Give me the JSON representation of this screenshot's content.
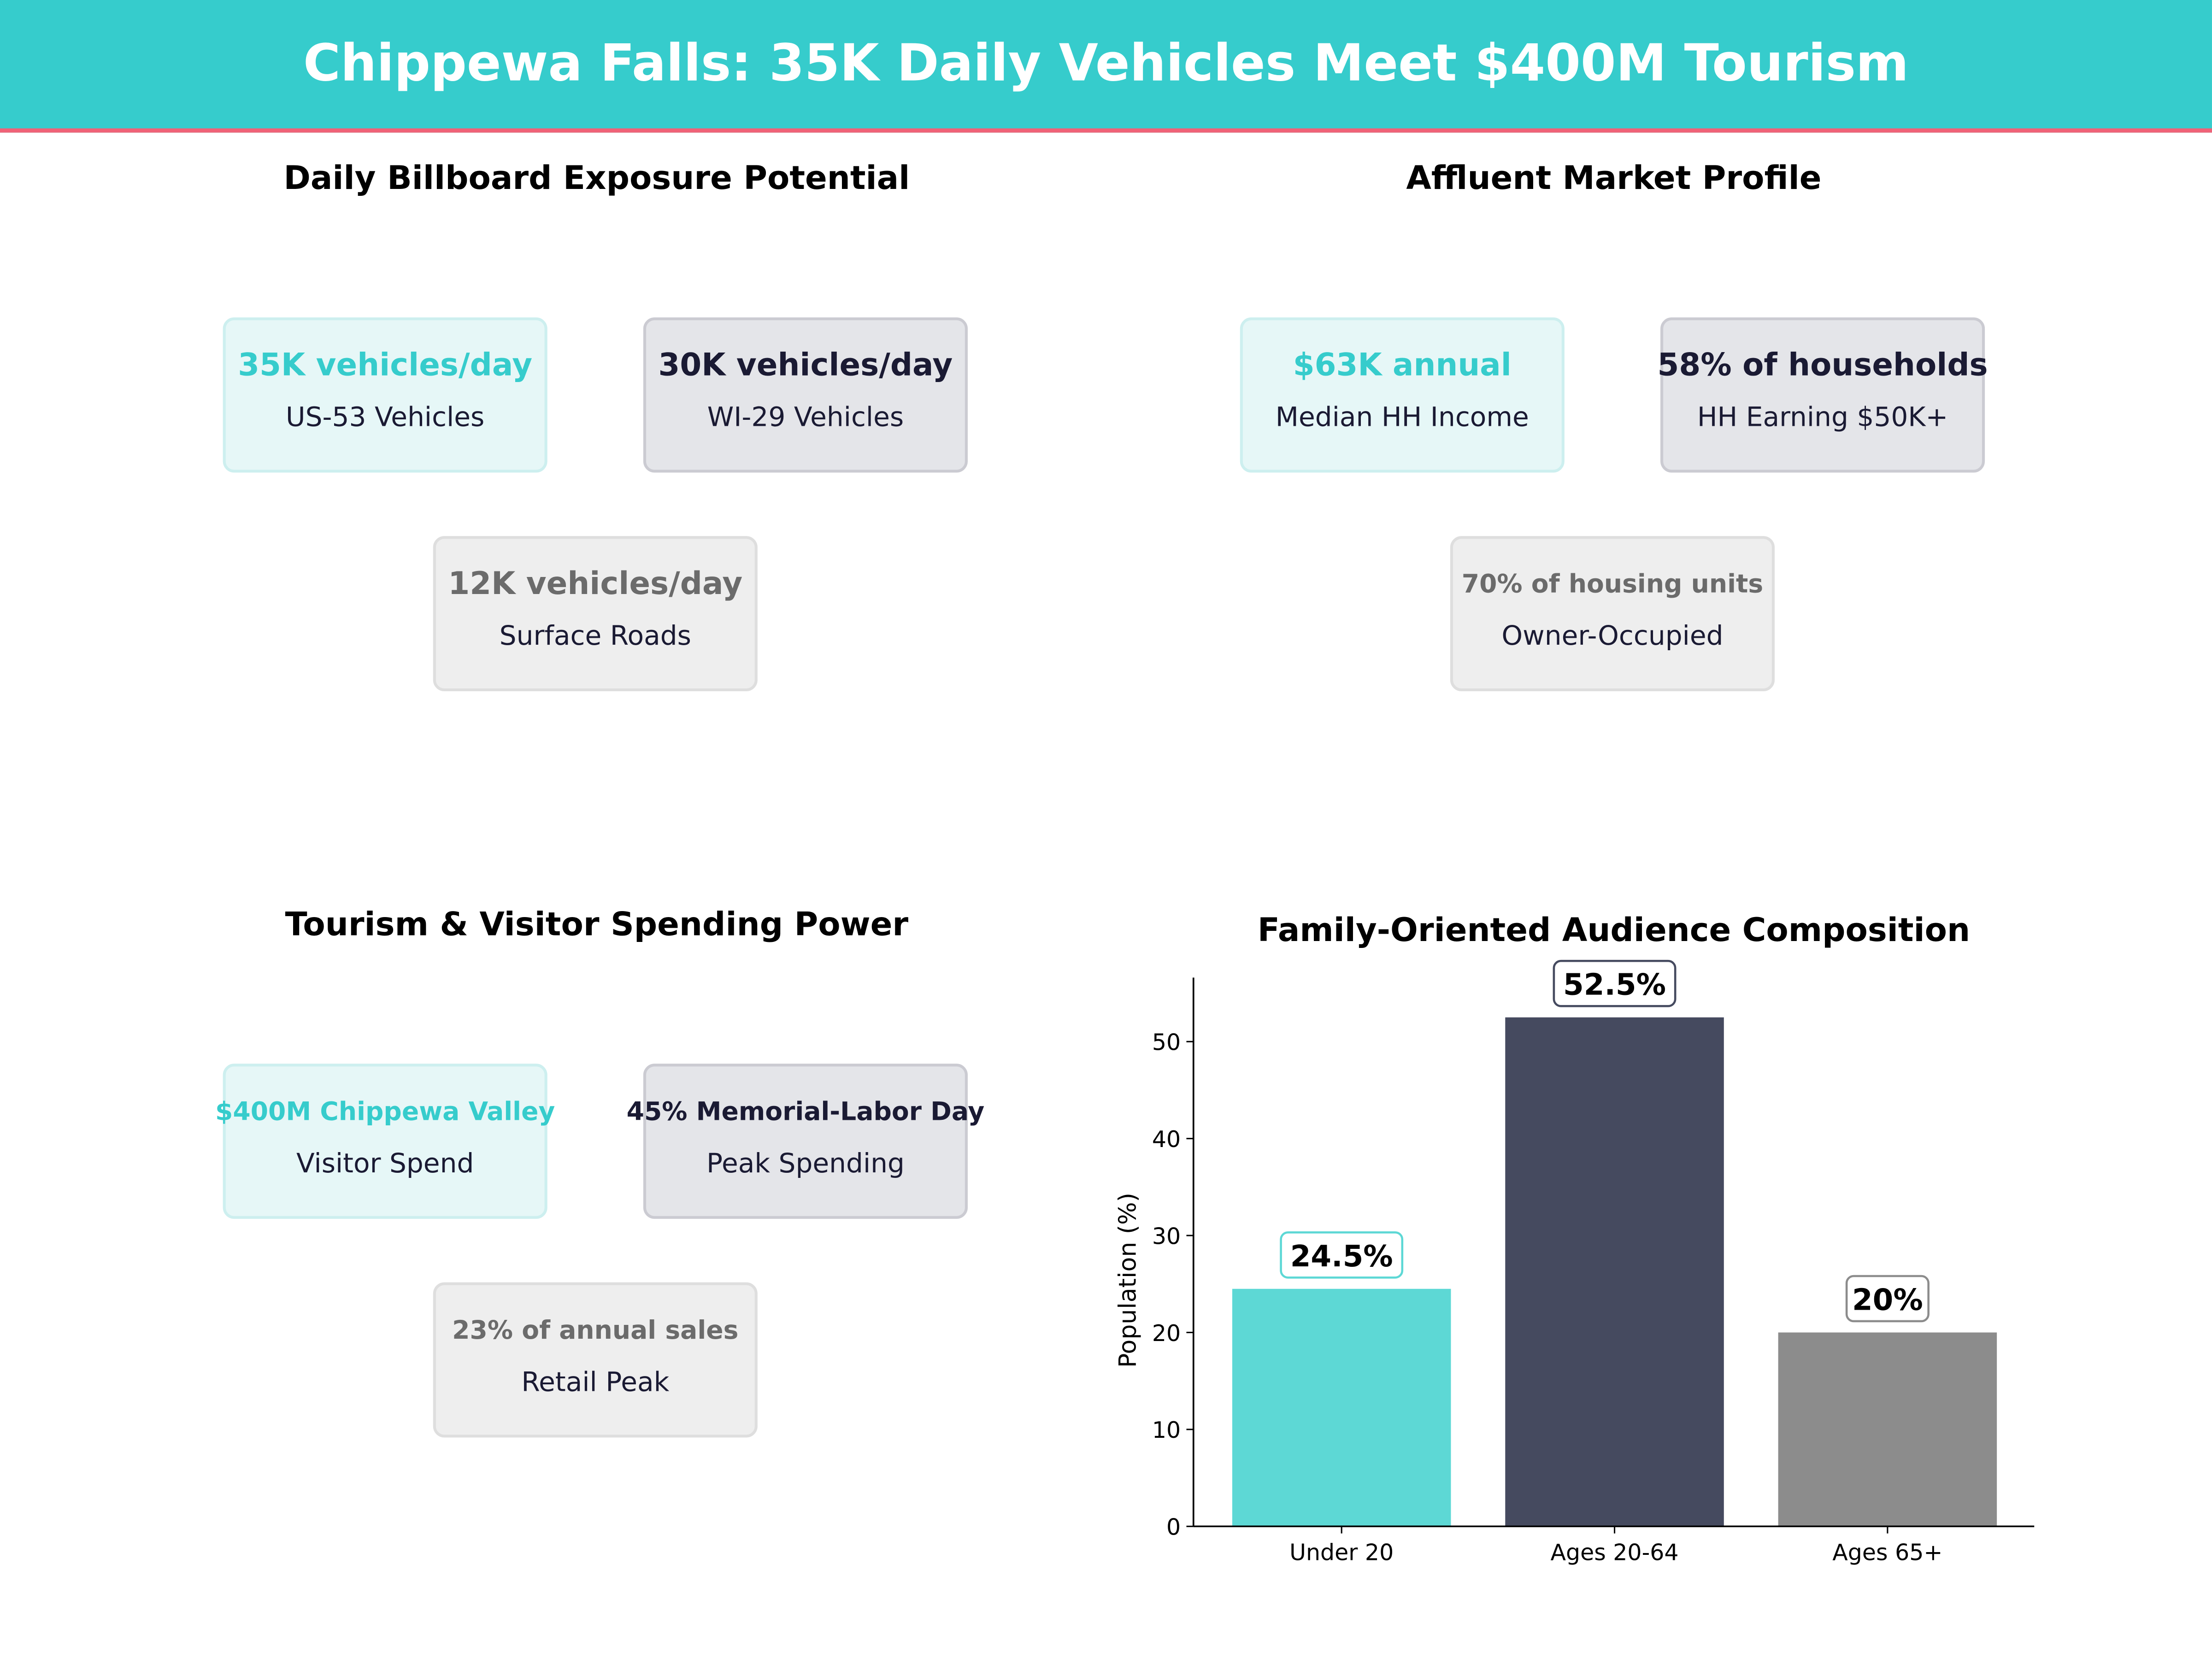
{
  "title": "Chippewa Falls: 35K Daily Vehicles Meet $400M Tourism",
  "colors": {
    "teal": "#36CCCC",
    "navy": "#1A1A33",
    "gray": "#6B6B6B",
    "accent_line": "#F06277"
  },
  "panels": [
    {
      "title": "Daily Billboard Exposure Potential",
      "cards": [
        {
          "value": "35K vehicles/day",
          "label": "US-53  Vehicles"
        },
        {
          "value": "30K vehicles/day",
          "label": "WI-29  Vehicles"
        },
        {
          "value": "12K vehicles/day",
          "label": "Surface Roads"
        }
      ]
    },
    {
      "title": "Affluent Market Profile",
      "cards": [
        {
          "value": "$63K annual",
          "label": "Median HH Income"
        },
        {
          "value": "58% of households",
          "label": "HH Earning $50K+"
        },
        {
          "value": "70% of housing units",
          "label": "Owner-Occupied"
        }
      ]
    },
    {
      "title": "Tourism & Visitor Spending Power",
      "cards": [
        {
          "value": "$400M Chippewa Valley",
          "label": "Visitor Spend"
        },
        {
          "value": "45% Memorial-Labor Day",
          "label": "Peak Spending"
        },
        {
          "value": "23% of annual sales",
          "label": "Retail Peak"
        }
      ]
    }
  ],
  "chart_data": {
    "type": "bar",
    "title": "Family-Oriented Audience Composition",
    "categories": [
      "Under 20",
      "Ages 20-64",
      "Ages 65+"
    ],
    "values": [
      24.5,
      52.5,
      20
    ],
    "data_labels": [
      "24.5%",
      "52.5%",
      "20%"
    ],
    "colors": [
      "#5DD8D5",
      "#454A5F",
      "#8C8C8C"
    ],
    "label_border_colors": [
      "#5DD8D5",
      "#454A5F",
      "#8C8C8C"
    ],
    "xlabel": "",
    "ylabel": "Population (%)",
    "ylim": [
      0,
      56.6
    ],
    "yticks": [
      0,
      10,
      20,
      30,
      40,
      50
    ],
    "grid": false
  }
}
